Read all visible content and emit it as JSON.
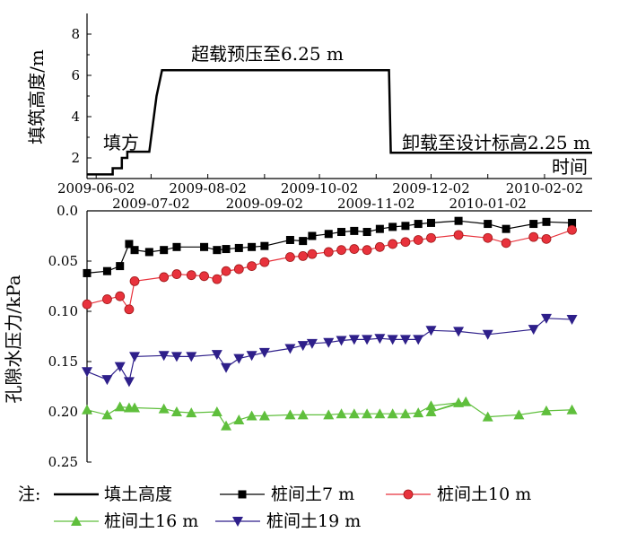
{
  "chart_data": [
    {
      "type": "line",
      "ylabel": "填筑高度/m",
      "xlabel": "时间",
      "ylim": [
        1,
        9
      ],
      "yticks": [
        2,
        4,
        6,
        8
      ],
      "xlim": [
        "2009-05-28",
        "2010-02-28"
      ],
      "xtick_labels_row1": [
        "2009-06-02",
        "2009-08-02",
        "2009-10-02",
        "2009-12-02",
        "2010-02-02"
      ],
      "xtick_labels_row2": [
        "2009-07-02",
        "2009-09-02",
        "2009-11-02",
        "2010-01-02"
      ],
      "annotations": [
        "填方",
        "超载预压至6.25 m",
        "卸载至设计标高2.25 m"
      ],
      "series": [
        {
          "name": "填土高度",
          "color": "#000000",
          "points": [
            [
              "2009-05-28",
              1.2
            ],
            [
              "2009-06-11",
              1.2
            ],
            [
              "2009-06-11",
              1.5
            ],
            [
              "2009-06-16",
              1.5
            ],
            [
              "2009-06-16",
              2.0
            ],
            [
              "2009-06-19",
              2.0
            ],
            [
              "2009-06-19",
              2.3
            ],
            [
              "2009-07-01",
              2.3
            ],
            [
              "2009-07-05",
              5.0
            ],
            [
              "2009-07-08",
              6.25
            ],
            [
              "2009-11-09",
              6.25
            ],
            [
              "2009-11-10",
              2.25
            ],
            [
              "2010-02-28",
              2.25
            ]
          ]
        }
      ]
    },
    {
      "type": "line",
      "ylabel": "孔隙水压力/kPa",
      "ylim": [
        0.0,
        0.25
      ],
      "yticks": [
        0.0,
        0.05,
        0.1,
        0.15,
        0.2,
        0.25
      ],
      "ytick_labels": [
        "0.0",
        "0.05",
        "0.10",
        "0.15",
        "0.20",
        "0.25"
      ],
      "inverted_y": true,
      "xlim": [
        "2009-05-28",
        "2010-02-28"
      ],
      "legend_prefix": "注:",
      "series": [
        {
          "name": "桩间土7 m",
          "marker": "square",
          "color": "#000000",
          "points": [
            [
              "2009-05-28",
              0.062
            ],
            [
              "2009-06-08",
              0.06
            ],
            [
              "2009-06-15",
              0.055
            ],
            [
              "2009-06-20",
              0.033
            ],
            [
              "2009-06-23",
              0.039
            ],
            [
              "2009-07-01",
              0.041
            ],
            [
              "2009-07-09",
              0.039
            ],
            [
              "2009-07-16",
              0.036
            ],
            [
              "2009-07-31",
              0.036
            ],
            [
              "2009-08-07",
              0.039
            ],
            [
              "2009-08-12",
              0.038
            ],
            [
              "2009-08-19",
              0.037
            ],
            [
              "2009-08-26",
              0.036
            ],
            [
              "2009-09-02",
              0.035
            ],
            [
              "2009-09-16",
              0.029
            ],
            [
              "2009-09-23",
              0.03
            ],
            [
              "2009-09-28",
              0.025
            ],
            [
              "2009-10-07",
              0.023
            ],
            [
              "2009-10-14",
              0.021
            ],
            [
              "2009-10-21",
              0.02
            ],
            [
              "2009-10-28",
              0.021
            ],
            [
              "2009-11-04",
              0.018
            ],
            [
              "2009-11-11",
              0.016
            ],
            [
              "2009-11-18",
              0.015
            ],
            [
              "2009-11-25",
              0.013
            ],
            [
              "2009-12-02",
              0.012
            ],
            [
              "2009-12-17",
              0.01
            ],
            [
              "2010-01-02",
              0.013
            ],
            [
              "2010-01-12",
              0.018
            ],
            [
              "2010-01-27",
              0.013
            ],
            [
              "2010-02-03",
              0.011
            ],
            [
              "2010-02-17",
              0.012
            ]
          ]
        },
        {
          "name": "桩间土10 m",
          "marker": "circle",
          "color": "#e8323c",
          "points": [
            [
              "2009-05-28",
              0.093
            ],
            [
              "2009-06-08",
              0.088
            ],
            [
              "2009-06-15",
              0.085
            ],
            [
              "2009-06-20",
              0.098
            ],
            [
              "2009-06-23",
              0.07
            ],
            [
              "2009-07-09",
              0.066
            ],
            [
              "2009-07-16",
              0.063
            ],
            [
              "2009-07-24",
              0.064
            ],
            [
              "2009-07-31",
              0.065
            ],
            [
              "2009-08-07",
              0.068
            ],
            [
              "2009-08-12",
              0.06
            ],
            [
              "2009-08-19",
              0.058
            ],
            [
              "2009-08-26",
              0.055
            ],
            [
              "2009-09-02",
              0.051
            ],
            [
              "2009-09-16",
              0.046
            ],
            [
              "2009-09-23",
              0.045
            ],
            [
              "2009-09-28",
              0.043
            ],
            [
              "2009-10-07",
              0.041
            ],
            [
              "2009-10-14",
              0.039
            ],
            [
              "2009-10-21",
              0.038
            ],
            [
              "2009-10-28",
              0.039
            ],
            [
              "2009-11-04",
              0.036
            ],
            [
              "2009-11-11",
              0.033
            ],
            [
              "2009-11-18",
              0.031
            ],
            [
              "2009-11-25",
              0.029
            ],
            [
              "2009-12-02",
              0.027
            ],
            [
              "2009-12-17",
              0.024
            ],
            [
              "2010-01-02",
              0.027
            ],
            [
              "2010-01-12",
              0.032
            ],
            [
              "2010-01-27",
              0.026
            ],
            [
              "2010-02-03",
              0.028
            ],
            [
              "2010-02-17",
              0.019
            ]
          ]
        },
        {
          "name": "桩间土16 m",
          "marker": "triangle-up",
          "color": "#5fbf3c",
          "points": [
            [
              "2009-05-28",
              0.198
            ],
            [
              "2009-06-08",
              0.203
            ],
            [
              "2009-06-15",
              0.195
            ],
            [
              "2009-06-20",
              0.196
            ],
            [
              "2009-06-23",
              0.196
            ],
            [
              "2009-07-09",
              0.197
            ],
            [
              "2009-07-16",
              0.2
            ],
            [
              "2009-07-24",
              0.201
            ],
            [
              "2009-08-07",
              0.2
            ],
            [
              "2009-08-12",
              0.214
            ],
            [
              "2009-08-19",
              0.208
            ],
            [
              "2009-08-26",
              0.204
            ],
            [
              "2009-09-02",
              0.204
            ],
            [
              "2009-09-16",
              0.203
            ],
            [
              "2009-09-23",
              0.203
            ],
            [
              "2009-10-07",
              0.203
            ],
            [
              "2009-10-14",
              0.202
            ],
            [
              "2009-10-21",
              0.202
            ],
            [
              "2009-10-28",
              0.202
            ],
            [
              "2009-11-04",
              0.202
            ],
            [
              "2009-11-11",
              0.202
            ],
            [
              "2009-11-18",
              0.202
            ],
            [
              "2009-11-25",
              0.201
            ],
            [
              "2009-12-02",
              0.194
            ],
            [
              "2009-12-17",
              0.191
            ],
            [
              "2009-12-02",
              0.2
            ],
            [
              "2009-12-21",
              0.19
            ],
            [
              "2010-01-02",
              0.205
            ],
            [
              "2010-01-19",
              0.203
            ],
            [
              "2010-02-03",
              0.199
            ],
            [
              "2010-02-17",
              0.198
            ]
          ]
        },
        {
          "name": "桩间土19 m",
          "marker": "triangle-down",
          "color": "#2e1f8a",
          "points": [
            [
              "2009-05-28",
              0.16
            ],
            [
              "2009-06-08",
              0.168
            ],
            [
              "2009-06-15",
              0.155
            ],
            [
              "2009-06-20",
              0.17
            ],
            [
              "2009-06-23",
              0.145
            ],
            [
              "2009-07-09",
              0.144
            ],
            [
              "2009-07-16",
              0.145
            ],
            [
              "2009-07-24",
              0.145
            ],
            [
              "2009-08-07",
              0.143
            ],
            [
              "2009-08-12",
              0.156
            ],
            [
              "2009-08-19",
              0.147
            ],
            [
              "2009-08-26",
              0.144
            ],
            [
              "2009-09-02",
              0.141
            ],
            [
              "2009-09-16",
              0.137
            ],
            [
              "2009-09-23",
              0.134
            ],
            [
              "2009-09-28",
              0.132
            ],
            [
              "2009-10-07",
              0.131
            ],
            [
              "2009-10-14",
              0.129
            ],
            [
              "2009-10-21",
              0.128
            ],
            [
              "2009-10-28",
              0.128
            ],
            [
              "2009-11-04",
              0.127
            ],
            [
              "2009-11-11",
              0.128
            ],
            [
              "2009-11-18",
              0.128
            ],
            [
              "2009-11-25",
              0.128
            ],
            [
              "2009-12-02",
              0.119
            ],
            [
              "2009-12-17",
              0.12
            ],
            [
              "2010-01-02",
              0.123
            ],
            [
              "2010-01-27",
              0.118
            ],
            [
              "2010-02-03",
              0.107
            ],
            [
              "2010-02-17",
              0.108
            ]
          ]
        }
      ]
    }
  ]
}
